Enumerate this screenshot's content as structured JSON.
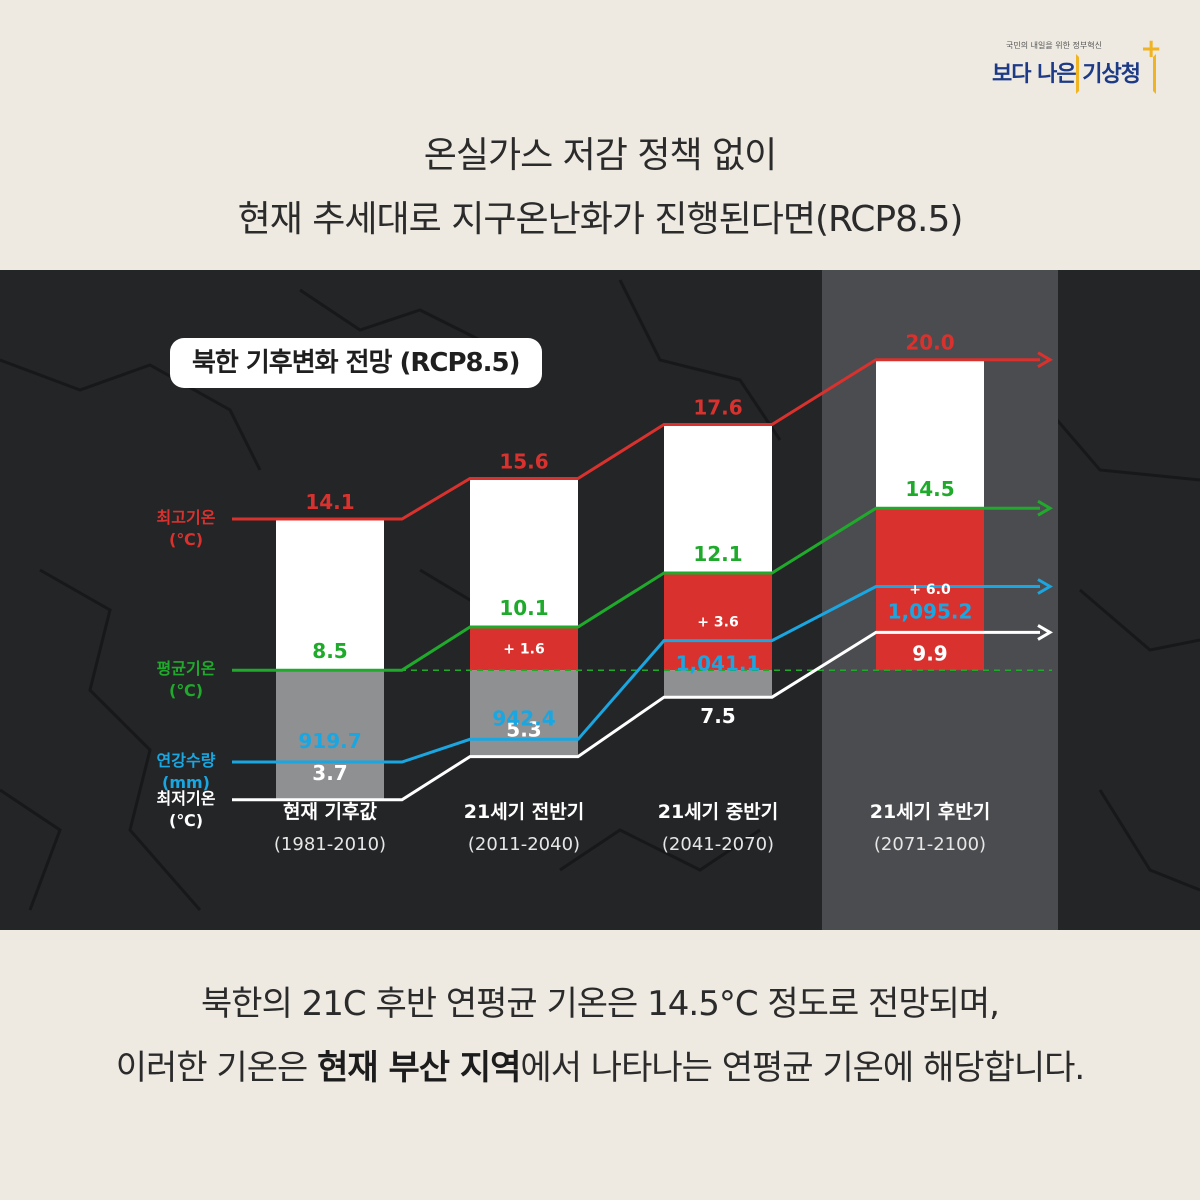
{
  "logo": {
    "tagline": "국민의 내일을 위한 정부혁신",
    "main": "보다 나은 기상청",
    "plus": "+"
  },
  "headline": {
    "line1": "온실가스 저감 정책 없이",
    "line2": "현재 추세대로 지구온난화가 진행된다면(RCP8.5)"
  },
  "footer": {
    "line1": "북한의 21C 후반 연평균 기온은 14.5°C 정도로 전망되며,",
    "line2_prefix": "이러한 기온은 ",
    "line2_bold": "현재 부산 지역",
    "line2_suffix": "에서 나타나는 연평균 기온에 해당합니다."
  },
  "colors": {
    "max": "#d9322e",
    "mean": "#1faa2c",
    "min": "#ffffff",
    "precip": "#1aa6e0",
    "increase_fill": "#d9322e",
    "gray_fill": "#8f9092",
    "bar_fill": "#ffffff"
  },
  "chart_data": {
    "type": "bar",
    "title": "북한 기후변화 전망 (RCP8.5)",
    "categories": [
      "현재 기후값",
      "21세기 전반기",
      "21세기 중반기",
      "21세기 후반기"
    ],
    "category_periods": [
      "(1981-2010)",
      "(2011-2040)",
      "(2041-2070)",
      "(2071-2100)"
    ],
    "highlight_category": "21세기 후반기",
    "series": [
      {
        "name": "최고기온",
        "unit": "(℃)",
        "key": "max",
        "values": [
          14.1,
          15.6,
          17.6,
          20.0
        ],
        "labels": [
          "14.1",
          "15.6",
          "17.6",
          "20.0"
        ]
      },
      {
        "name": "평균기온",
        "unit": "(℃)",
        "key": "mean",
        "values": [
          8.5,
          10.1,
          12.1,
          14.5
        ],
        "labels": [
          "8.5",
          "10.1",
          "12.1",
          "14.5"
        ]
      },
      {
        "name": "최저기온",
        "unit": "(℃)",
        "key": "min",
        "values": [
          3.7,
          5.3,
          7.5,
          9.9
        ],
        "labels": [
          "3.7",
          "5.3",
          "7.5",
          "9.9"
        ]
      },
      {
        "name": "연강수량",
        "unit": "(mm)",
        "key": "precip",
        "values": [
          919.7,
          942.4,
          1041.1,
          1095.2
        ],
        "labels": [
          "919.7",
          "942.4",
          "1,041.1",
          "1,095.2"
        ]
      }
    ],
    "mean_increase": {
      "values": [
        null,
        1.6,
        3.6,
        6.0
      ],
      "labels": [
        "",
        "+ 1.6",
        "+ 3.6",
        "+ 6.0"
      ]
    },
    "baseline_mean": 8.5
  }
}
